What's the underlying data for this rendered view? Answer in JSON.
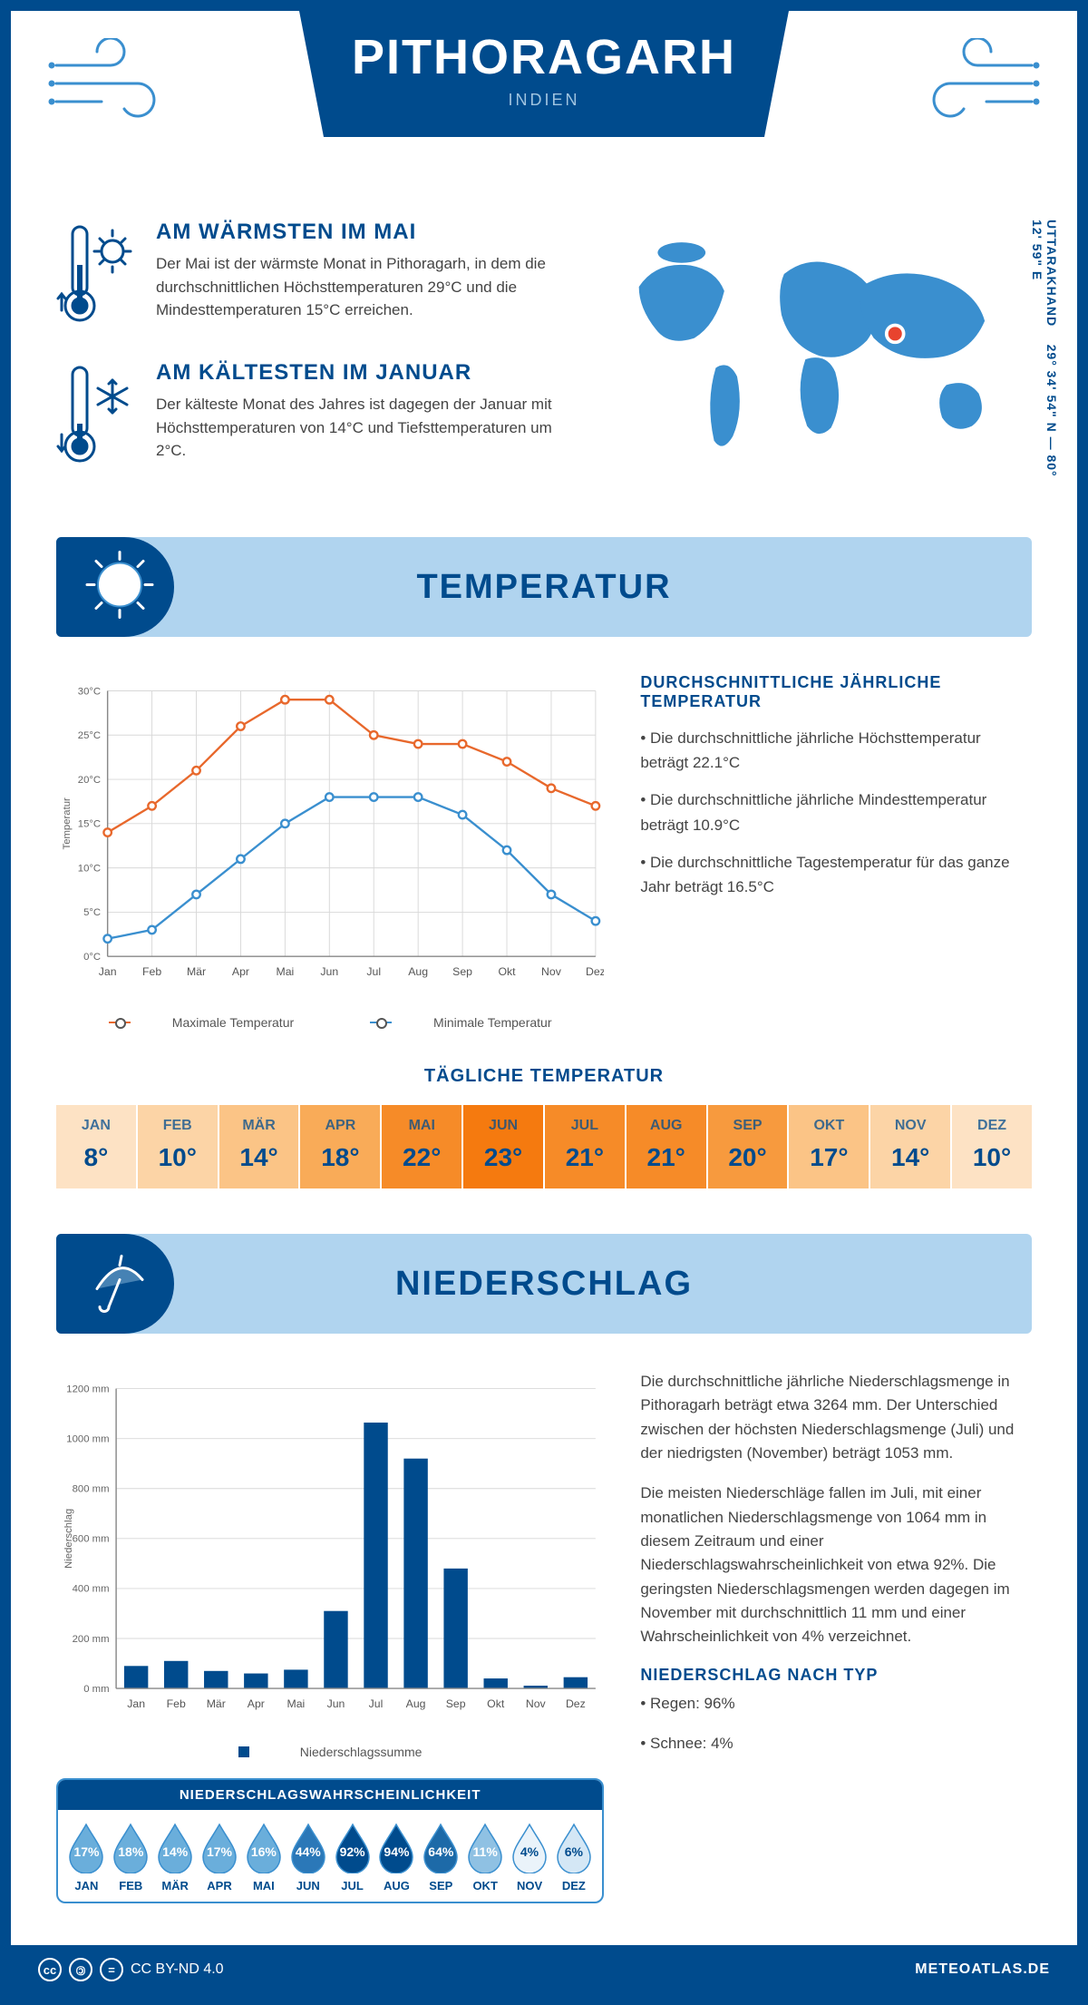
{
  "header": {
    "city": "PITHORAGARH",
    "country": "INDIEN"
  },
  "facts": {
    "warm": {
      "title": "AM WÄRMSTEN IM MAI",
      "text": "Der Mai ist der wärmste Monat in Pithoragarh, in dem die durchschnittlichen Höchsttemperaturen 29°C und die Mindesttemperaturen 15°C erreichen."
    },
    "cold": {
      "title": "AM KÄLTESTEN IM JANUAR",
      "text": "Der kälteste Monat des Jahres ist dagegen der Januar mit Höchsttemperaturen von 14°C und Tiefsttemperaturen um 2°C."
    }
  },
  "coords": {
    "lat": "29° 34' 54\" N",
    "lon": "80° 12' 59\" E",
    "region": "UTTARAKHAND"
  },
  "sections": {
    "temp": "TEMPERATUR",
    "precip": "NIEDERSCHLAG"
  },
  "months": [
    "Jan",
    "Feb",
    "Mär",
    "Apr",
    "Mai",
    "Jun",
    "Jul",
    "Aug",
    "Sep",
    "Okt",
    "Nov",
    "Dez"
  ],
  "months_upper": [
    "JAN",
    "FEB",
    "MÄR",
    "APR",
    "MAI",
    "JUN",
    "JUL",
    "AUG",
    "SEP",
    "OKT",
    "NOV",
    "DEZ"
  ],
  "temp_chart": {
    "type": "line",
    "ylabel": "Temperatur",
    "ylim": [
      0,
      30
    ],
    "ytick_step": 5,
    "max_series": {
      "label": "Maximale Temperatur",
      "color": "#e8682c",
      "values": [
        14,
        17,
        21,
        26,
        29,
        29,
        25,
        24,
        24,
        22,
        19,
        17
      ]
    },
    "min_series": {
      "label": "Minimale Temperatur",
      "color": "#3a8fcf",
      "values": [
        2,
        3,
        7,
        11,
        15,
        18,
        18,
        18,
        16,
        12,
        7,
        4
      ]
    },
    "grid_color": "#d8d8d8",
    "axis_color": "#888"
  },
  "temp_text": {
    "heading": "DURCHSCHNITTLICHE JÄHRLICHE TEMPERATUR",
    "b1": "• Die durchschnittliche jährliche Höchsttemperatur beträgt 22.1°C",
    "b2": "• Die durchschnittliche jährliche Mindesttemperatur beträgt 10.9°C",
    "b3": "• Die durchschnittliche Tagestemperatur für das ganze Jahr beträgt 16.5°C"
  },
  "daily_temp": {
    "heading": "TÄGLICHE TEMPERATUR",
    "values": [
      "8°",
      "10°",
      "14°",
      "18°",
      "22°",
      "23°",
      "21°",
      "21°",
      "20°",
      "17°",
      "14°",
      "10°"
    ],
    "colors": [
      "#fde2c4",
      "#fcd4a6",
      "#fbc486",
      "#f9ab58",
      "#f68b28",
      "#f57a0f",
      "#f68b28",
      "#f68b28",
      "#f79a3e",
      "#fbc486",
      "#fcd4a6",
      "#fde2c4"
    ]
  },
  "precip_chart": {
    "type": "bar",
    "ylabel": "Niederschlag",
    "ylim": [
      0,
      1200
    ],
    "ytick_step": 200,
    "unit": "mm",
    "values": [
      90,
      110,
      70,
      60,
      75,
      310,
      1064,
      920,
      480,
      40,
      11,
      45
    ],
    "bar_color": "#004b8d",
    "legend": "Niederschlagssumme",
    "grid_color": "#d8d8d8"
  },
  "precip_text": {
    "p1": "Die durchschnittliche jährliche Niederschlagsmenge in Pithoragarh beträgt etwa 3264 mm. Der Unterschied zwischen der höchsten Niederschlagsmenge (Juli) und der niedrigsten (November) beträgt 1053 mm.",
    "p2": "Die meisten Niederschläge fallen im Juli, mit einer monatlichen Niederschlagsmenge von 1064 mm in diesem Zeitraum und einer Niederschlagswahrscheinlichkeit von etwa 92%. Die geringsten Niederschlagsmengen werden dagegen im November mit durchschnittlich 11 mm und einer Wahrscheinlichkeit von 4% verzeichnet.",
    "type_heading": "NIEDERSCHLAG NACH TYP",
    "rain": "• Regen: 96%",
    "snow": "• Schnee: 4%"
  },
  "prob": {
    "heading": "NIEDERSCHLAGSWAHRSCHEINLICHKEIT",
    "values": [
      "17%",
      "18%",
      "14%",
      "17%",
      "16%",
      "44%",
      "92%",
      "94%",
      "64%",
      "11%",
      "4%",
      "6%"
    ],
    "fills": [
      "#6aaedb",
      "#6aaedb",
      "#6aaedb",
      "#6aaedb",
      "#6aaedb",
      "#2b78b8",
      "#004b8d",
      "#004b8d",
      "#1d6aa8",
      "#8fc1e3",
      "#eaf3fa",
      "#d4e7f5"
    ],
    "text_colors": [
      "#fff",
      "#fff",
      "#fff",
      "#fff",
      "#fff",
      "#fff",
      "#fff",
      "#fff",
      "#fff",
      "#fff",
      "#004b8d",
      "#004b8d"
    ]
  },
  "footer": {
    "license": "CC BY-ND 4.0",
    "site": "METEOATLAS.DE"
  },
  "colors": {
    "primary": "#004b8d",
    "accent": "#3a8fcf",
    "light": "#b0d4ef"
  }
}
